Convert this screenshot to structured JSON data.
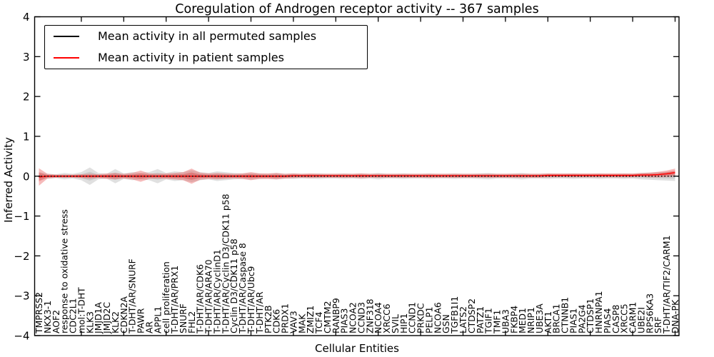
{
  "figure": {
    "title": "Coregulation of Androgen receptor activity -- 367 samples",
    "xlabel": "Cellular Entities",
    "ylabel": "Inferred Activity"
  },
  "chart_data": {
    "type": "line",
    "title": "Coregulation of Androgen receptor activity -- 367 samples",
    "xlabel": "Cellular Entities",
    "ylabel": "Inferred Activity",
    "ylim": [
      -4,
      4
    ],
    "yticks": [
      -4,
      -3,
      -2,
      -1,
      0,
      1,
      2,
      3,
      4
    ],
    "grid": false,
    "legend_position": "upper left",
    "categories": [
      "TMPRSS2",
      "NKX3-1",
      "AOF2",
      "response to oxidative stress",
      "CDC2L1",
      "mol:T-DHT",
      "KLK3",
      "JMJD1A",
      "JMJD2C",
      "KLK2",
      "CDKN2A",
      "T-DHT/AR/SNURF",
      "PAWR",
      "AR",
      "APPL1",
      "cell proliferation",
      "T-DHT/AR/PRX1",
      "SNURF",
      "FHL2",
      "T-DHT/AR/CDK6",
      "T-DHT/AR/ARA70",
      "T-DHT/AR/CyclinD1",
      "T-DHT/AR/Cyclin D3/CDK11 p58",
      "Cyclin D3/CDK11 p58",
      "T-DHT/AR/Caspase 8",
      "T-DHT/AR/Ubc9",
      "T-DHT/AR",
      "PTK2B",
      "CDK6",
      "PRDX1",
      "VAV3",
      "MAK",
      "ZMIZ1",
      "TCF4",
      "CMTM2",
      "RANBP9",
      "PIAS3",
      "NCOA2",
      "CCND3",
      "ZNF318",
      "NCOA4",
      "XRCC6",
      "SVIL",
      "HIP1",
      "CCND1",
      "PRKDC",
      "PELP1",
      "NCOA6",
      "GSN",
      "TGFB1I1",
      "LATS2",
      "CTDSP2",
      "PATZ1",
      "TGIF1",
      "TMF1",
      "UBA3",
      "FKBP4",
      "MED1",
      "NRIP1",
      "UBE3A",
      "AKT1",
      "BRCA1",
      "CTNNB1",
      "PIAS1",
      "PA2G4",
      "CTDSP1",
      "HNRNPA1",
      "PIAS4",
      "CASP8",
      "XRCC5",
      "CARM1",
      "UBE2I",
      "RPS6KA3",
      "SRF",
      "T-DHT/AR/TIF2/CARM1",
      "DNA-PK"
    ],
    "series": [
      {
        "name": "Mean activity in all permuted samples",
        "color": "#000000",
        "style": "dotted",
        "values": [
          0,
          0,
          0,
          0,
          0,
          0,
          0,
          0,
          0,
          0,
          0,
          0,
          0,
          0,
          0,
          0,
          0,
          0,
          0,
          0,
          0,
          0,
          0,
          0,
          0,
          0,
          0,
          0,
          0,
          0,
          0,
          0,
          0,
          0,
          0,
          0,
          0,
          0,
          0,
          0,
          0,
          0,
          0,
          0,
          0,
          0,
          0,
          0,
          0,
          0,
          0,
          0,
          0,
          0,
          0,
          0,
          0,
          0,
          0,
          0,
          0,
          0,
          0,
          0,
          0,
          0,
          0,
          0,
          0,
          0,
          0,
          0,
          0,
          0,
          0,
          0
        ]
      },
      {
        "name": "Mean activity in patient samples",
        "color": "#ff0000",
        "style": "solid",
        "values": [
          -0.02,
          0,
          0,
          0,
          0,
          0,
          0,
          0,
          0,
          0,
          0,
          0,
          0,
          0,
          0,
          0,
          0,
          0,
          0,
          0,
          0,
          0,
          0,
          0,
          0,
          0,
          0,
          0,
          0,
          0,
          0.01,
          0.01,
          0.01,
          0.01,
          0.01,
          0.01,
          0.01,
          0.01,
          0.01,
          0.01,
          0.01,
          0.01,
          0.01,
          0.01,
          0.01,
          0.01,
          0.01,
          0.01,
          0.01,
          0.01,
          0.01,
          0.01,
          0.01,
          0.01,
          0.01,
          0.01,
          0.01,
          0.01,
          0.01,
          0.01,
          0.02,
          0.02,
          0.02,
          0.02,
          0.02,
          0.02,
          0.02,
          0.02,
          0.02,
          0.02,
          0.02,
          0.03,
          0.03,
          0.04,
          0.06,
          0.09
        ]
      }
    ],
    "bands": [
      {
        "name": "permuted-samples-envelope",
        "color": "#a0a0a0",
        "opacity": 0.32,
        "center": 0,
        "halfwidths": [
          0.1,
          0.06,
          0.05,
          0.08,
          0.06,
          0.1,
          0.22,
          0.08,
          0.06,
          0.18,
          0.07,
          0.1,
          0.08,
          0.1,
          0.18,
          0.08,
          0.12,
          0.1,
          0.15,
          0.1,
          0.08,
          0.12,
          0.1,
          0.08,
          0.07,
          0.08,
          0.07,
          0.06,
          0.08,
          0.06,
          0.07,
          0.06,
          0.06,
          0.07,
          0.06,
          0.06,
          0.07,
          0.06,
          0.07,
          0.06,
          0.08,
          0.06,
          0.06,
          0.07,
          0.06,
          0.06,
          0.07,
          0.06,
          0.06,
          0.07,
          0.06,
          0.06,
          0.07,
          0.08,
          0.06,
          0.06,
          0.07,
          0.08,
          0.06,
          0.06,
          0.07,
          0.06,
          0.06,
          0.07,
          0.06,
          0.06,
          0.07,
          0.06,
          0.06,
          0.07,
          0.06,
          0.08,
          0.09,
          0.1,
          0.11,
          0.12
        ]
      },
      {
        "name": "patient-samples-envelope",
        "color": "#e63c3c",
        "opacity": 0.35,
        "center": "series-1",
        "halfwidths": [
          0.22,
          0.06,
          0.04,
          0.04,
          0.04,
          0.05,
          0.06,
          0.05,
          0.07,
          0.08,
          0.06,
          0.08,
          0.14,
          0.07,
          0.06,
          0.07,
          0.08,
          0.1,
          0.19,
          0.09,
          0.07,
          0.08,
          0.07,
          0.06,
          0.07,
          0.1,
          0.07,
          0.07,
          0.08,
          0.06,
          0.06,
          0.05,
          0.06,
          0.05,
          0.05,
          0.05,
          0.05,
          0.05,
          0.06,
          0.05,
          0.05,
          0.05,
          0.05,
          0.05,
          0.05,
          0.05,
          0.05,
          0.05,
          0.05,
          0.05,
          0.05,
          0.05,
          0.05,
          0.05,
          0.05,
          0.05,
          0.05,
          0.05,
          0.05,
          0.05,
          0.05,
          0.05,
          0.05,
          0.05,
          0.05,
          0.05,
          0.05,
          0.05,
          0.05,
          0.05,
          0.05,
          0.05,
          0.06,
          0.07,
          0.08,
          0.1
        ]
      }
    ]
  }
}
